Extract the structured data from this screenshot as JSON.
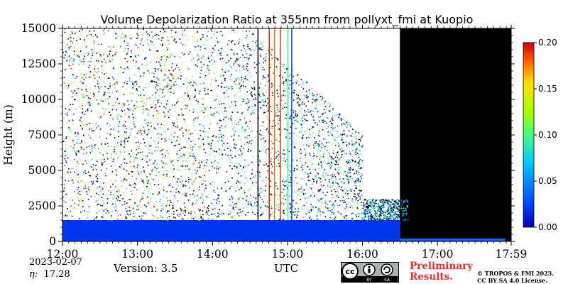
{
  "chart_data": {
    "type": "heatmap",
    "title": "Volume Depolarization Ratio at 355nm from pollyxt_fmi at Kuopio",
    "xlabel": "UTC",
    "ylabel": "Height (m)",
    "x_tick_labels": [
      "12:00",
      "13:00",
      "14:00",
      "15:00",
      "16:00",
      "17:00",
      "17:59"
    ],
    "x_ticks_hours": [
      12,
      13,
      14,
      15,
      16,
      17,
      17.983
    ],
    "xlim_hours": [
      12,
      17.983
    ],
    "y_ticks": [
      0,
      2500,
      5000,
      7500,
      10000,
      12500,
      15000
    ],
    "y_tick_labels": [
      "0",
      "2500",
      "5000",
      "7500",
      "10000",
      "12500",
      "15000"
    ],
    "ylim": [
      0,
      15000
    ],
    "colorbar": {
      "ticks": [
        0.0,
        0.05,
        0.1,
        0.15,
        0.2
      ],
      "tick_labels": [
        "0.00",
        "0.05",
        "0.10",
        "0.15",
        "0.20"
      ],
      "range": [
        0,
        0.2
      ],
      "colormap": "jet"
    },
    "regions": {
      "boundary_layer_top_m": 1500,
      "signal_end_utc": "16:30",
      "boundary_layer_value": 0.02,
      "background_color": "#000000"
    }
  },
  "footer": {
    "date": "2023-02-07",
    "eta_label": "η:",
    "eta_value": "17.28",
    "version": "Version: 3.5",
    "utc_label": "UTC",
    "preliminary_line1": "Preliminary",
    "preliminary_line2": "Results.",
    "copyright_line1": "© TROPOS & FMI 2023.",
    "copyright_line2": "CC BY SA 4.0 License.",
    "license_badge_icon": "cc-by-sa-icon",
    "license_badge_text": [
      "BY",
      "SA"
    ],
    "license_badge_cc": "cc"
  },
  "colors": {
    "preliminary": "#e8322c"
  }
}
